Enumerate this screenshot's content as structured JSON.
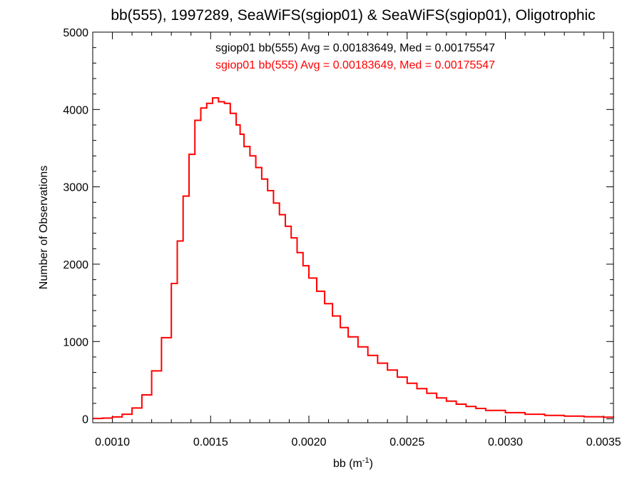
{
  "chart_data": {
    "type": "histogram",
    "title": "bb(555), 1997289, SeaWiFS(sgiop01) & SeaWiFS(sgiop01), Oligotrophic",
    "xlabel": {
      "prefix": "bb (m",
      "superscript": "-1",
      "suffix": ")"
    },
    "ylabel": "Number of Observations",
    "xlim": [
      0.0009,
      0.00355
    ],
    "ylim": [
      -50,
      5000
    ],
    "x_ticks": [
      0.001,
      0.0015,
      0.002,
      0.0025,
      0.003,
      0.0035
    ],
    "x_tick_labels": [
      "0.0010",
      "0.0015",
      "0.0020",
      "0.0025",
      "0.0030",
      "0.0035"
    ],
    "y_ticks": [
      0,
      1000,
      2000,
      3000,
      4000,
      5000
    ],
    "y_tick_labels": [
      "0",
      "1000",
      "2000",
      "3000",
      "4000",
      "5000"
    ],
    "grid": false,
    "legend_position": "top-center",
    "legend": [
      {
        "text": "sgiop01 bb(555) Avg = 0.00183649, Med = 0.00175547",
        "color": "#000000"
      },
      {
        "text": "sgiop01 bb(555) Avg = 0.00183649, Med = 0.00175547",
        "color": "#ff0000"
      }
    ],
    "series": [
      {
        "name": "sgiop01 bb(555)",
        "color": "#ff0000",
        "x": [
          0.0009,
          0.00095,
          0.001,
          0.00105,
          0.0011,
          0.00115,
          0.0012,
          0.00125,
          0.0013,
          0.00133,
          0.00136,
          0.00139,
          0.00142,
          0.00145,
          0.00148,
          0.00151,
          0.00154,
          0.00157,
          0.0016,
          0.00163,
          0.00165,
          0.00167,
          0.0017,
          0.00173,
          0.00176,
          0.00179,
          0.00182,
          0.00185,
          0.00188,
          0.00191,
          0.00194,
          0.00197,
          0.002,
          0.00204,
          0.00208,
          0.00212,
          0.00216,
          0.0022,
          0.00225,
          0.0023,
          0.00235,
          0.0024,
          0.00245,
          0.0025,
          0.00255,
          0.0026,
          0.00265,
          0.0027,
          0.00275,
          0.0028,
          0.00285,
          0.0029,
          0.003,
          0.0031,
          0.0032,
          0.0033,
          0.0034,
          0.0035,
          0.00355
        ],
        "y": [
          5,
          10,
          25,
          60,
          140,
          310,
          620,
          1050,
          1750,
          2300,
          2880,
          3420,
          3860,
          4020,
          4080,
          4150,
          4100,
          4080,
          3950,
          3800,
          3680,
          3520,
          3400,
          3250,
          3100,
          2950,
          2790,
          2640,
          2490,
          2340,
          2150,
          1980,
          1820,
          1650,
          1490,
          1330,
          1180,
          1060,
          930,
          820,
          720,
          630,
          540,
          460,
          390,
          330,
          270,
          230,
          190,
          160,
          135,
          110,
          80,
          60,
          45,
          35,
          28,
          22,
          20
        ]
      }
    ]
  }
}
